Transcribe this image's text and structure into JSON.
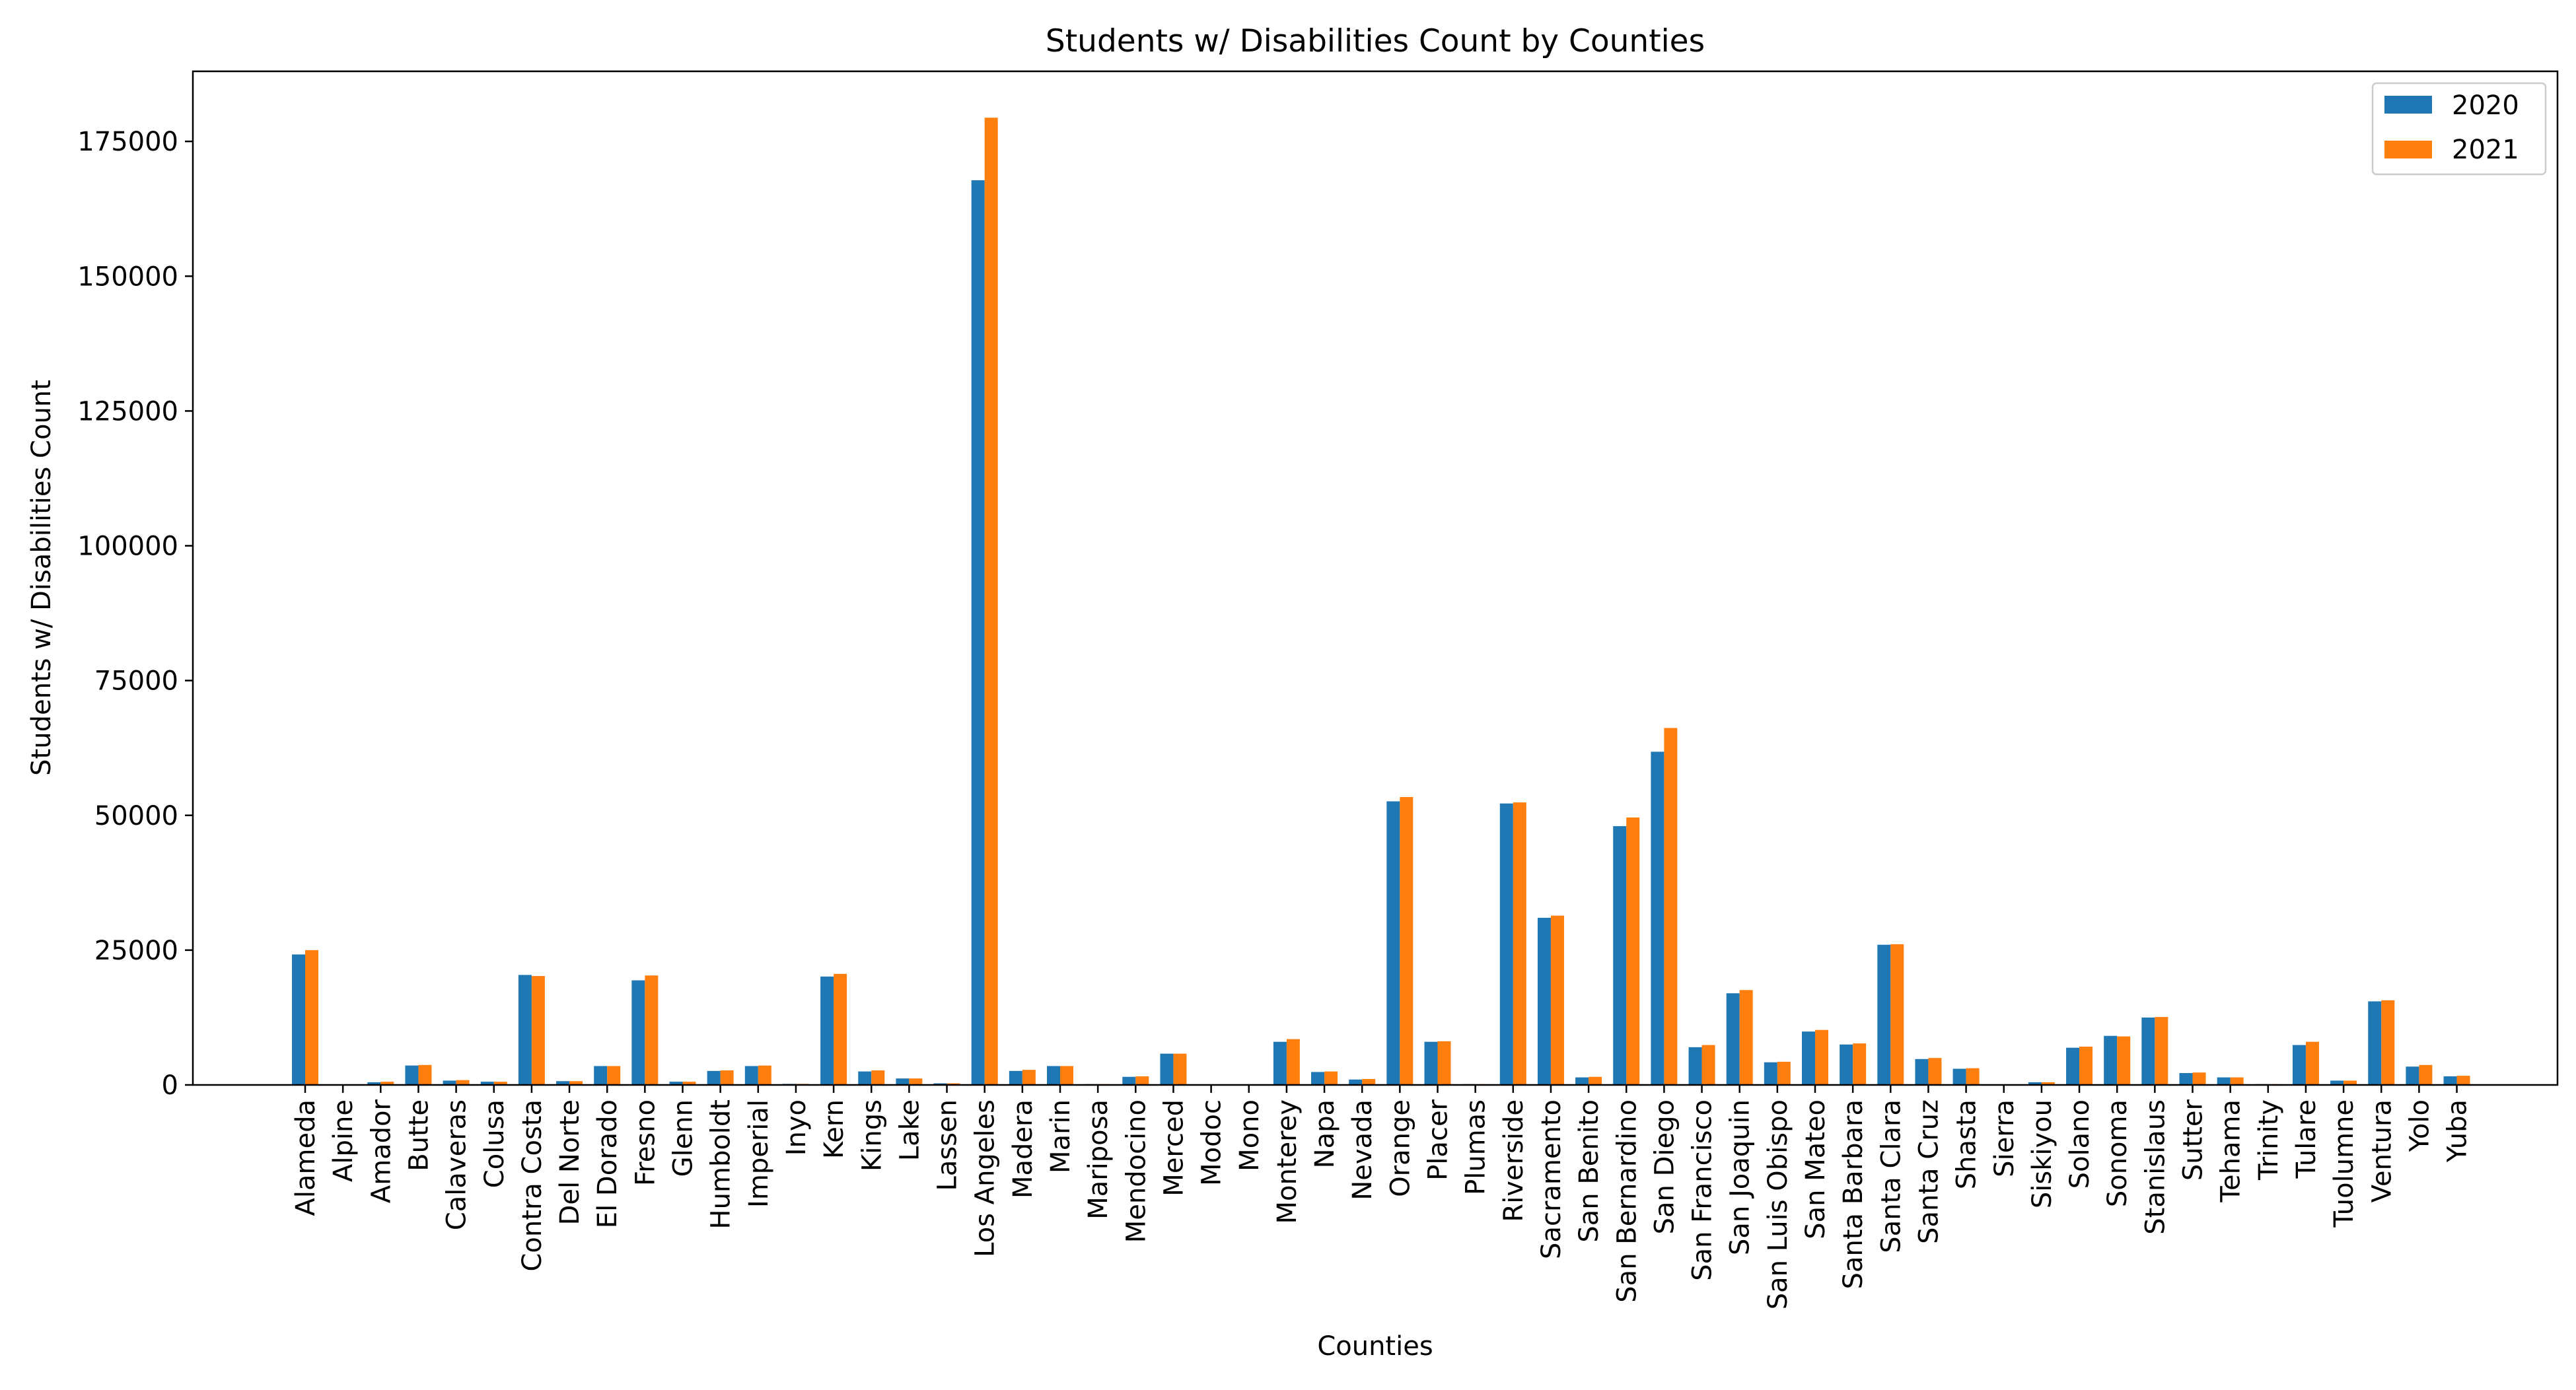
{
  "chart_data": {
    "type": "bar",
    "title": "Students w/ Disabilities Count by Counties",
    "xlabel": "Counties",
    "ylabel": "Students w/ Disabilities Count",
    "ylim": [
      0,
      188000
    ],
    "yticks": [
      0,
      25000,
      50000,
      75000,
      100000,
      125000,
      150000,
      175000
    ],
    "grid": false,
    "legend_position": "top-right",
    "categories": [
      "Alameda",
      "Alpine",
      "Amador",
      "Butte",
      "Calaveras",
      "Colusa",
      "Contra Costa",
      "Del Norte",
      "El Dorado",
      "Fresno",
      "Glenn",
      "Humboldt",
      "Imperial",
      "Inyo",
      "Kern",
      "Kings",
      "Lake",
      "Lassen",
      "Los Angeles",
      "Madera",
      "Marin",
      "Mariposa",
      "Mendocino",
      "Merced",
      "Modoc",
      "Mono",
      "Monterey",
      "Napa",
      "Nevada",
      "Orange",
      "Placer",
      "Plumas",
      "Riverside",
      "Sacramento",
      "San Benito",
      "San Bernardino",
      "San Diego",
      "San Francisco",
      "San Joaquin",
      "San Luis Obispo",
      "San Mateo",
      "Santa Barbara",
      "Santa Clara",
      "Santa Cruz",
      "Shasta",
      "Sierra",
      "Siskiyou",
      "Solano",
      "Sonoma",
      "Stanislaus",
      "Sutter",
      "Tehama",
      "Trinity",
      "Tulare",
      "Tuolumne",
      "Ventura",
      "Yolo",
      "Yuba"
    ],
    "series": [
      {
        "name": "2020",
        "color": "#1f77b4",
        "values": [
          24200,
          50,
          500,
          3600,
          800,
          600,
          20400,
          700,
          3500,
          19400,
          600,
          2600,
          3500,
          200,
          20100,
          2500,
          1200,
          300,
          167800,
          2600,
          3500,
          150,
          1500,
          5800,
          100,
          100,
          8000,
          2400,
          1000,
          52600,
          8000,
          150,
          52200,
          31000,
          1400,
          48000,
          61800,
          7000,
          17000,
          4200,
          9900,
          7500,
          26000,
          4800,
          3000,
          100,
          500,
          6900,
          9100,
          12500,
          2200,
          1400,
          150,
          7400,
          800,
          15500,
          3400,
          1600
        ]
      },
      {
        "name": "2021",
        "color": "#ff7f0e",
        "values": [
          25000,
          50,
          600,
          3700,
          900,
          600,
          20200,
          700,
          3500,
          20300,
          600,
          2700,
          3600,
          200,
          20600,
          2700,
          1200,
          300,
          179400,
          2800,
          3500,
          150,
          1600,
          5800,
          100,
          100,
          8500,
          2500,
          1100,
          53400,
          8100,
          150,
          52400,
          31400,
          1500,
          49600,
          66200,
          7400,
          17600,
          4300,
          10200,
          7700,
          26100,
          5000,
          3100,
          100,
          500,
          7100,
          9000,
          12600,
          2300,
          1400,
          150,
          8000,
          800,
          15700,
          3700,
          1700
        ]
      }
    ]
  }
}
